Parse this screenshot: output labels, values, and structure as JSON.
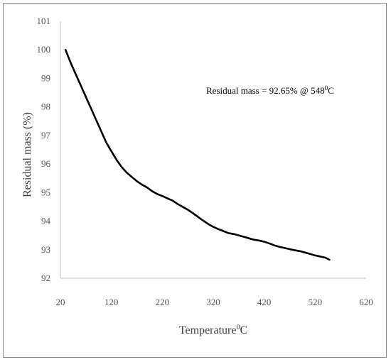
{
  "chart_data": {
    "type": "line",
    "xlabel": "Temperature",
    "xlabel_unit": "0C",
    "ylabel": "Residual mass (%)",
    "xlim": [
      20,
      620
    ],
    "ylim": [
      92,
      101
    ],
    "x_ticks": [
      "20",
      "120",
      "220",
      "320",
      "420",
      "520",
      "620"
    ],
    "y_ticks": [
      "92",
      "93",
      "94",
      "95",
      "96",
      "97",
      "98",
      "99",
      "100",
      "101"
    ],
    "annotation": {
      "text_main": "Residual mass = 92.65% @ 548",
      "text_sup": "0",
      "text_end": "C"
    },
    "grid": false,
    "line_color": "#000000",
    "series": [
      {
        "x": [
          30,
          40,
          50,
          60,
          70,
          80,
          90,
          100,
          110,
          120,
          130,
          140,
          150,
          160,
          170,
          180,
          190,
          200,
          210,
          220,
          230,
          240,
          250,
          260,
          270,
          280,
          290,
          300,
          310,
          320,
          330,
          340,
          350,
          360,
          370,
          380,
          390,
          400,
          410,
          420,
          430,
          440,
          450,
          460,
          470,
          480,
          490,
          500,
          510,
          520,
          530,
          540,
          548
        ],
        "y": [
          100.0,
          99.55,
          99.15,
          98.75,
          98.35,
          97.95,
          97.55,
          97.15,
          96.75,
          96.45,
          96.15,
          95.9,
          95.7,
          95.55,
          95.4,
          95.28,
          95.18,
          95.05,
          94.95,
          94.88,
          94.8,
          94.72,
          94.6,
          94.5,
          94.4,
          94.28,
          94.15,
          94.02,
          93.9,
          93.8,
          93.72,
          93.65,
          93.58,
          93.55,
          93.5,
          93.45,
          93.4,
          93.35,
          93.32,
          93.28,
          93.22,
          93.15,
          93.1,
          93.06,
          93.02,
          92.98,
          92.95,
          92.9,
          92.85,
          92.8,
          92.76,
          92.72,
          92.65
        ]
      }
    ]
  }
}
